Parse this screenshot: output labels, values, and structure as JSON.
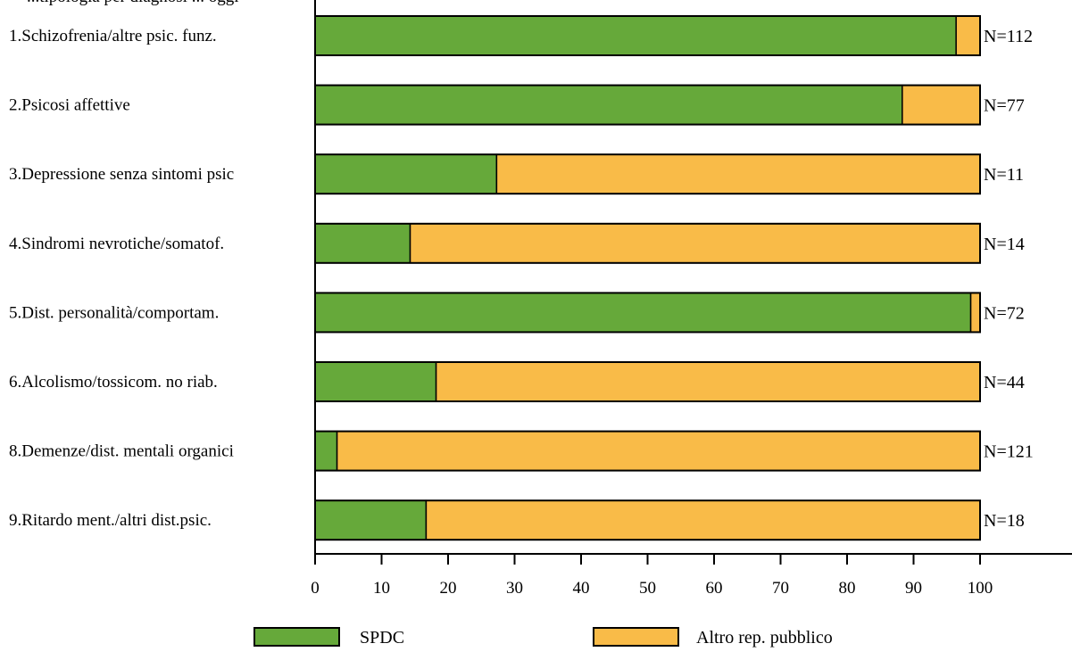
{
  "chart_data": {
    "type": "bar",
    "stacked": true,
    "orientation": "horizontal",
    "title_fragment": "...tipologia per diagnosi ... oggi",
    "categories": [
      "1.Schizofrenia/altre psic. funz.",
      "2.Psicosi affettive",
      "3.Depressione senza sintomi psic",
      "4.Sindromi nevrotiche/somatof.",
      "5.Dist. personalità/comportam.",
      "6.Alcolismo/tossicom. no riab.",
      "8.Demenze/dist. mentali organici",
      "9.Ritardo ment./altri dist.psic."
    ],
    "n_labels": [
      "N=112",
      "N=77",
      "N=11",
      "N=14",
      "N=72",
      "N=44",
      "N=121",
      "N=18"
    ],
    "series": [
      {
        "name": "SPDC",
        "color": "#66a93a",
        "values": [
          96.4,
          88.3,
          27.3,
          14.3,
          98.6,
          18.2,
          3.3,
          16.7
        ]
      },
      {
        "name": "Altro rep. pubblico",
        "color": "#f9bb48",
        "values": [
          3.6,
          11.7,
          72.7,
          85.7,
          1.4,
          81.8,
          96.7,
          83.3
        ]
      }
    ],
    "x_ticks": [
      "0",
      "10",
      "20",
      "30",
      "40",
      "50",
      "60",
      "70",
      "80",
      "90",
      "100"
    ],
    "xlim": [
      0,
      100
    ],
    "grid": false,
    "legend_position": "bottom"
  }
}
